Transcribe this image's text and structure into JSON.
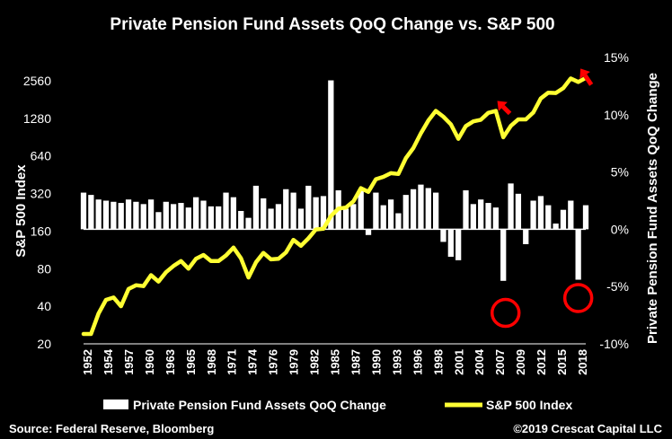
{
  "chart_data": {
    "type": "bar+line",
    "title": "Private Pension Fund Assets QoQ Change vs. S&P 500",
    "ylabel_left": "S&P 500 Index",
    "ylabel_right": "Private Pension Fund Assets QoQ Change",
    "left_axis": {
      "scale": "log2",
      "ticks": [
        20,
        40,
        80,
        160,
        320,
        640,
        1280,
        2560
      ]
    },
    "right_axis": {
      "ticks": [
        -10,
        -5,
        0,
        5,
        10,
        15
      ],
      "tick_labels": [
        "-10%",
        "-5%",
        "0%",
        "5%",
        "10%",
        "15%"
      ]
    },
    "x_tick_labels": [
      "1952",
      "1954",
      "1957",
      "1960",
      "1963",
      "1965",
      "1968",
      "1971",
      "1974",
      "1976",
      "1979",
      "1982",
      "1985",
      "1987",
      "1990",
      "1993",
      "1996",
      "1998",
      "2001",
      "2004",
      "2007",
      "2009",
      "2012",
      "2015",
      "2018"
    ],
    "xlim": [
      1952,
      2019
    ],
    "series": [
      {
        "name": "Private Pension Fund Assets QoQ Change",
        "kind": "bar",
        "color": "#ffffff",
        "x": [
          1952,
          1953,
          1954,
          1955,
          1956,
          1957,
          1958,
          1959,
          1960,
          1961,
          1962,
          1963,
          1964,
          1965,
          1966,
          1967,
          1968,
          1969,
          1970,
          1971,
          1972,
          1973,
          1974,
          1975,
          1976,
          1977,
          1978,
          1979,
          1980,
          1981,
          1982,
          1983,
          1984,
          1985,
          1986,
          1987,
          1988,
          1989,
          1990,
          1991,
          1992,
          1993,
          1994,
          1995,
          1996,
          1997,
          1998,
          1999,
          2000,
          2001,
          2002,
          2003,
          2004,
          2005,
          2006,
          2007,
          2008,
          2009,
          2010,
          2011,
          2012,
          2013,
          2014,
          2015,
          2016,
          2017,
          2018,
          2019
        ],
        "values": [
          3.2,
          3.0,
          2.6,
          2.5,
          2.4,
          2.3,
          2.6,
          2.4,
          2.2,
          2.6,
          1.5,
          2.4,
          2.2,
          2.3,
          1.9,
          2.8,
          2.5,
          2.0,
          2.0,
          3.2,
          2.8,
          1.6,
          1.0,
          3.8,
          2.7,
          1.8,
          2.2,
          3.5,
          3.2,
          1.8,
          3.8,
          2.8,
          2.9,
          13.0,
          3.4,
          1.8,
          2.2,
          3.5,
          -0.5,
          3.2,
          2.1,
          2.6,
          1.4,
          3.0,
          3.5,
          3.9,
          3.6,
          3.2,
          -1.1,
          -2.4,
          -2.7,
          3.4,
          2.2,
          2.6,
          2.3,
          1.9,
          -4.5,
          4.0,
          3.1,
          -1.3,
          2.5,
          2.9,
          2.1,
          0.5,
          1.7,
          2.5,
          -4.4,
          2.1
        ]
      },
      {
        "name": "S&P 500 Index",
        "kind": "line",
        "color": "#ffff33",
        "x": [
          1952,
          1953,
          1954,
          1955,
          1956,
          1957,
          1958,
          1959,
          1960,
          1961,
          1962,
          1963,
          1964,
          1965,
          1966,
          1967,
          1968,
          1969,
          1970,
          1971,
          1972,
          1973,
          1974,
          1975,
          1976,
          1977,
          1978,
          1979,
          1980,
          1981,
          1982,
          1983,
          1984,
          1985,
          1986,
          1987,
          1988,
          1989,
          1990,
          1991,
          1992,
          1993,
          1994,
          1995,
          1996,
          1997,
          1998,
          1999,
          2000,
          2001,
          2002,
          2003,
          2004,
          2005,
          2006,
          2007,
          2008,
          2009,
          2010,
          2011,
          2012,
          2013,
          2014,
          2015,
          2016,
          2017,
          2018,
          2019
        ],
        "values": [
          24,
          24,
          35,
          45,
          47,
          40,
          55,
          59,
          58,
          71,
          63,
          75,
          84,
          92,
          80,
          96,
          103,
          92,
          92,
          102,
          118,
          97,
          68,
          90,
          107,
          95,
          96,
          108,
          136,
          122,
          140,
          165,
          167,
          211,
          242,
          247,
          277,
          353,
          330,
          417,
          435,
          466,
          459,
          615,
          740,
          970,
          1229,
          1469,
          1320,
          1148,
          879,
          1112,
          1212,
          1248,
          1418,
          1468,
          903,
          1115,
          1257,
          1257,
          1426,
          1848,
          2058,
          2043,
          2238,
          2673,
          2506,
          2700
        ]
      }
    ],
    "annotations": [
      "arrow-2007-peak",
      "arrow-2018-peak",
      "circle-2008-drop",
      "circle-2018-drop"
    ],
    "legend_position": "bottom"
  },
  "footer": {
    "source": "Source: Federal Reserve, Bloomberg",
    "copyright": "©2019 Crescat Capital LLC"
  },
  "colors": {
    "background": "#000000",
    "bars": "#ffffff",
    "line": "#ffff33",
    "annotation": "#ff0000"
  }
}
